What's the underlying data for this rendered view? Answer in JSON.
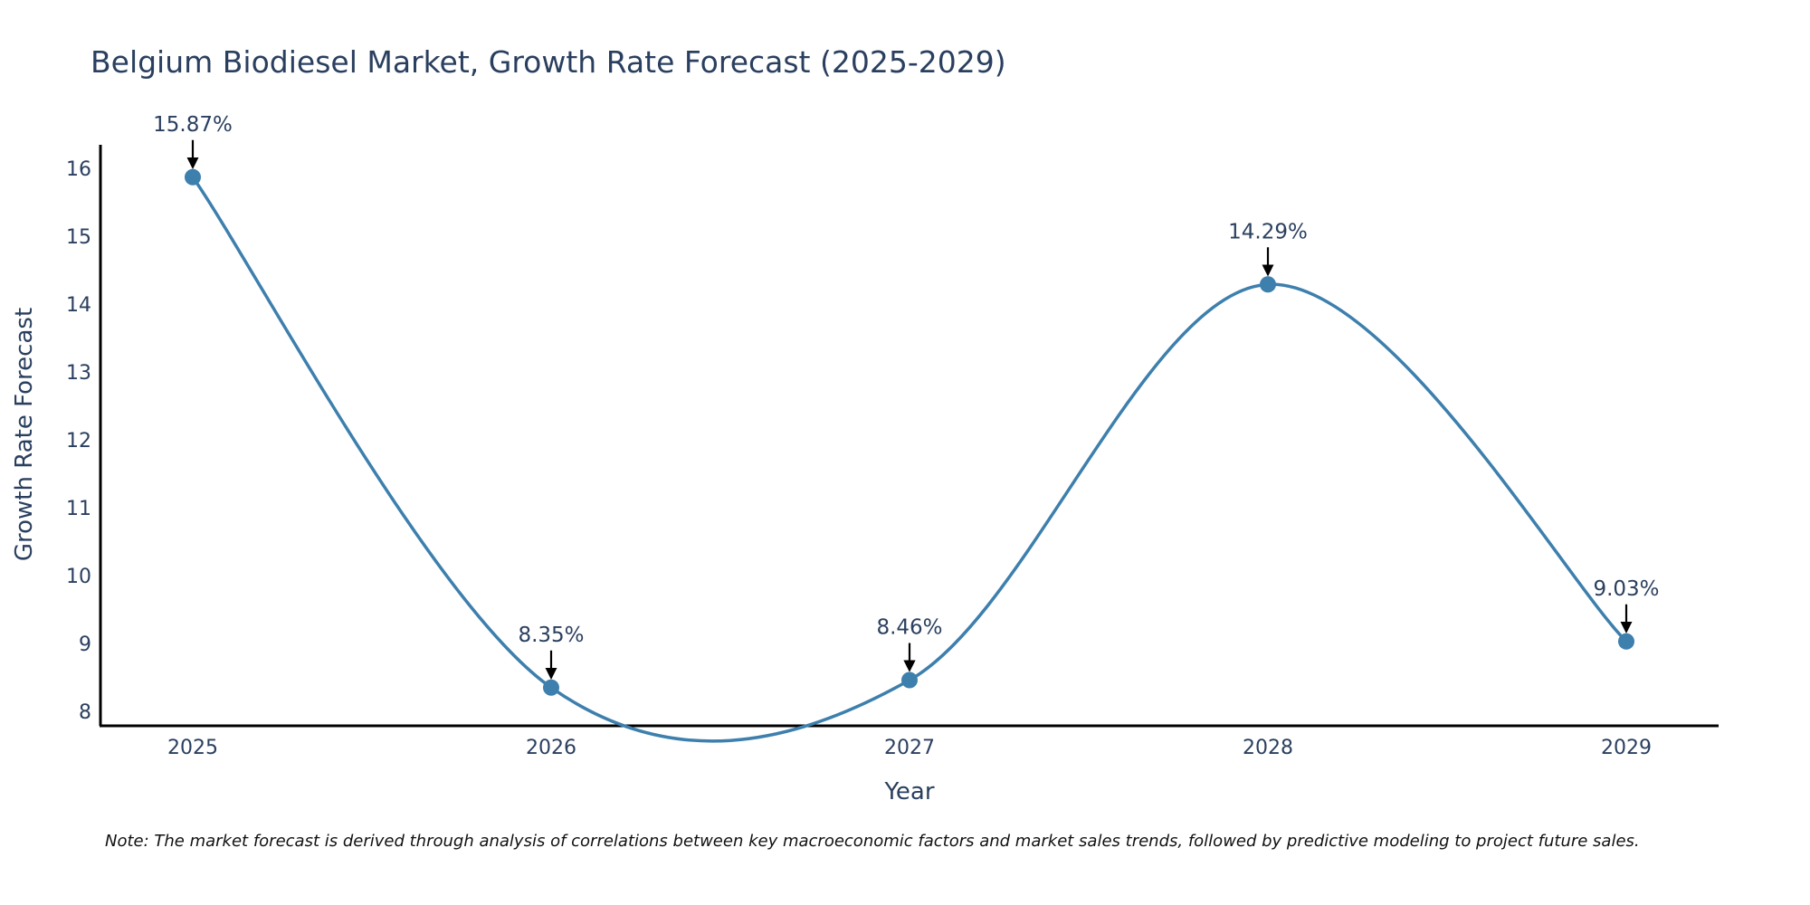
{
  "chart_data": {
    "type": "line",
    "title": "Belgium Biodiesel Market, Growth Rate Forecast (2025-2029)",
    "xlabel": "Year",
    "ylabel": "Growth Rate Forecast",
    "categories": [
      "2025",
      "2026",
      "2027",
      "2028",
      "2029"
    ],
    "values": [
      15.87,
      8.35,
      8.46,
      14.29,
      9.03
    ],
    "data_labels": [
      "15.87%",
      "8.35%",
      "8.46%",
      "14.29%",
      "9.03%"
    ],
    "yticks": [
      8,
      9,
      10,
      11,
      12,
      13,
      14,
      15,
      16
    ],
    "ylim": [
      7.85,
      16.2
    ],
    "grid": false,
    "line_color": "#3d7fad",
    "marker_color": "#3d7fad",
    "annotation_arrow_color": "#000000"
  },
  "footer": {
    "note": "Note: The market forecast is derived through analysis of correlations between key macroeconomic factors and market sales trends, followed by predictive modeling to project future sales."
  }
}
